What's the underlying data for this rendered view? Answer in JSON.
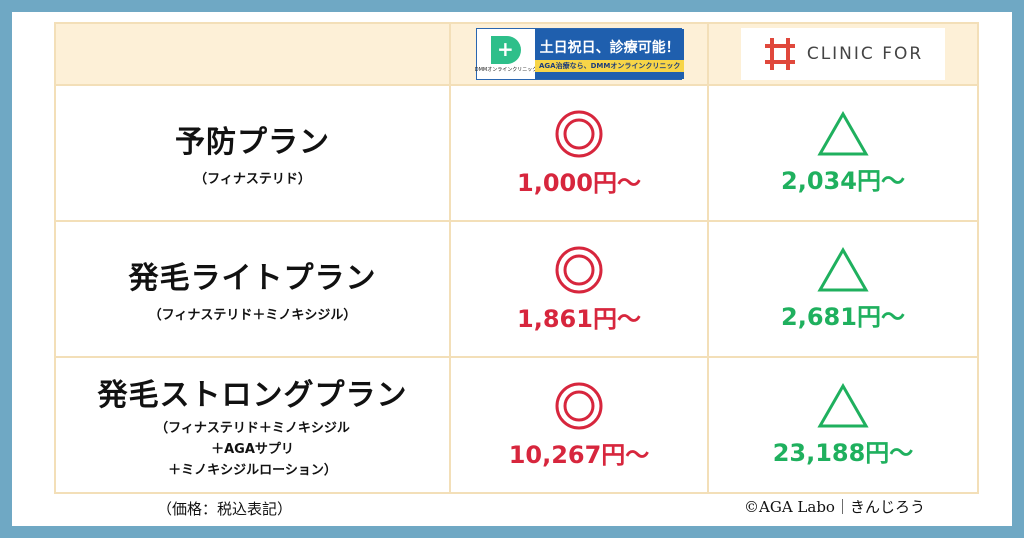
{
  "header": {
    "dmm": {
      "brand": "DMMオンラインクリニック",
      "headline": "土日祝日、診療可能！",
      "tagline": "AGA治療なら、DMMオンラインクリニック"
    },
    "clinic_for": {
      "name": "CLINIC FOR"
    }
  },
  "rows": [
    {
      "name": "予防プラン",
      "sub_lines": [
        "（フィナステリド）"
      ],
      "dmm_price": "1,000円〜",
      "cf_price": "2,034円〜"
    },
    {
      "name": "発毛ライトプラン",
      "sub_lines": [
        "（フィナステリド＋ミノキシジル）"
      ],
      "dmm_price": "1,861円〜",
      "cf_price": "2,681円〜"
    },
    {
      "name": "発毛ストロングプラン",
      "sub_lines": [
        "（フィナステリド＋ミノキシジル",
        "＋AGAサプリ",
        "＋ミノキシジルローション）"
      ],
      "dmm_price": "10,267円〜",
      "cf_price": "23,188円〜"
    }
  ],
  "symbols": {
    "dmm": "double-circle",
    "clinic_for": "triangle"
  },
  "colors": {
    "dmm_price": "#d7263d",
    "cf_price": "#1fb05e",
    "header_bg": "#fdf0d7",
    "frame": "#6fa8c4"
  },
  "footer": {
    "note": "（価格：税込表記）",
    "credit": "©AGA Labo｜きんじろう"
  }
}
